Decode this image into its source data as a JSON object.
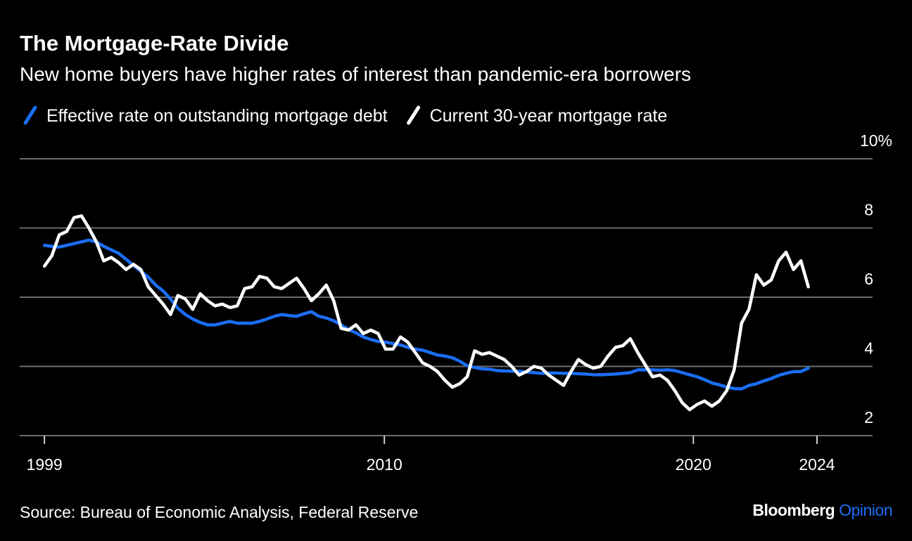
{
  "chart_data": {
    "type": "line",
    "title": "The Mortgage-Rate Divide",
    "subtitle": "New home buyers have higher rates of interest than pandemic-era borrowers",
    "source": "Source: Bureau of Economic Analysis, Federal Reserve",
    "brand": [
      "Bloomberg",
      "Opinion"
    ],
    "x": [
      1999,
      1999.24,
      1999.48,
      1999.72,
      1999.96,
      2000.2,
      2000.44,
      2000.68,
      2000.92,
      2001.16,
      2001.4,
      2001.64,
      2001.88,
      2002.12,
      2002.36,
      2002.6,
      2002.84,
      2003.08,
      2003.32,
      2003.56,
      2003.8,
      2004.04,
      2004.28,
      2004.52,
      2004.76,
      2005,
      2005.24,
      2005.48,
      2005.72,
      2005.96,
      2006.2,
      2006.44,
      2006.68,
      2006.92,
      2007.16,
      2007.4,
      2007.64,
      2007.88,
      2008.12,
      2008.36,
      2008.6,
      2008.84,
      2009.08,
      2009.32,
      2009.56,
      2009.8,
      2010.04,
      2010.28,
      2010.52,
      2010.76,
      2011,
      2011.24,
      2011.48,
      2011.72,
      2011.96,
      2012.2,
      2012.44,
      2012.68,
      2012.92,
      2013.16,
      2013.4,
      2013.64,
      2013.88,
      2014.12,
      2014.36,
      2014.6,
      2014.84,
      2015.08,
      2015.32,
      2015.56,
      2015.8,
      2016.04,
      2016.28,
      2016.52,
      2016.76,
      2017,
      2017.24,
      2017.48,
      2017.72,
      2017.96,
      2018.2,
      2018.44,
      2018.68,
      2018.92,
      2019.16,
      2019.4,
      2019.64,
      2019.88,
      2020.12,
      2020.36,
      2020.6,
      2020.84,
      2021.08,
      2021.32,
      2021.56,
      2021.8,
      2022.04,
      2022.28,
      2022.52,
      2022.76,
      2023,
      2023.24,
      2023.48,
      2023.72
    ],
    "series": [
      {
        "name": "Effective rate on outstanding mortgage debt",
        "color": "#1a6ef5",
        "values": [
          7.5,
          7.47,
          7.45,
          7.5,
          7.55,
          7.6,
          7.65,
          7.6,
          7.47,
          7.37,
          7.27,
          7.1,
          6.92,
          6.75,
          6.58,
          6.35,
          6.18,
          5.95,
          5.68,
          5.5,
          5.37,
          5.27,
          5.2,
          5.2,
          5.25,
          5.3,
          5.25,
          5.25,
          5.25,
          5.3,
          5.37,
          5.45,
          5.5,
          5.47,
          5.45,
          5.52,
          5.58,
          5.45,
          5.4,
          5.32,
          5.2,
          5.07,
          4.97,
          4.85,
          4.78,
          4.72,
          4.7,
          4.66,
          4.62,
          4.55,
          4.5,
          4.47,
          4.4,
          4.33,
          4.3,
          4.25,
          4.15,
          4.02,
          3.97,
          3.93,
          3.92,
          3.88,
          3.87,
          3.86,
          3.86,
          3.84,
          3.82,
          3.8,
          3.81,
          3.81,
          3.8,
          3.8,
          3.79,
          3.78,
          3.76,
          3.76,
          3.77,
          3.78,
          3.8,
          3.82,
          3.9,
          3.9,
          3.9,
          3.89,
          3.9,
          3.88,
          3.82,
          3.76,
          3.7,
          3.62,
          3.52,
          3.47,
          3.4,
          3.36,
          3.35,
          3.45,
          3.5,
          3.58,
          3.65,
          3.74,
          3.8,
          3.85,
          3.85,
          3.95
        ]
      },
      {
        "name": "Current 30-year mortgage rate",
        "color": "#ffffff",
        "values": [
          6.9,
          7.2,
          7.8,
          7.9,
          8.3,
          8.35,
          8.0,
          7.6,
          7.05,
          7.15,
          7.0,
          6.8,
          6.95,
          6.8,
          6.3,
          6.05,
          5.8,
          5.5,
          6.05,
          5.95,
          5.65,
          6.1,
          5.9,
          5.75,
          5.8,
          5.7,
          5.75,
          6.25,
          6.3,
          6.6,
          6.55,
          6.3,
          6.25,
          6.4,
          6.55,
          6.25,
          5.9,
          6.1,
          6.35,
          5.9,
          5.1,
          5.05,
          5.2,
          4.95,
          5.05,
          4.95,
          4.5,
          4.5,
          4.85,
          4.7,
          4.4,
          4.1,
          4.0,
          3.85,
          3.6,
          3.4,
          3.5,
          3.7,
          4.45,
          4.35,
          4.4,
          4.3,
          4.2,
          4.0,
          3.75,
          3.85,
          4.0,
          3.95,
          3.75,
          3.6,
          3.45,
          3.85,
          4.2,
          4.05,
          3.95,
          4.0,
          4.3,
          4.55,
          4.6,
          4.8,
          4.4,
          4.05,
          3.7,
          3.75,
          3.6,
          3.3,
          2.95,
          2.75,
          2.9,
          3.0,
          2.85,
          3.0,
          3.3,
          3.9,
          5.25,
          5.65,
          6.65,
          6.35,
          6.5,
          7.05,
          7.3,
          6.8,
          7.05,
          6.3
        ]
      }
    ],
    "xlim": [
      1998.2,
      2025.8
    ],
    "xticks": [
      1999,
      2010,
      2020,
      2024
    ],
    "ylim": [
      2,
      10
    ],
    "yticks": [
      2,
      4,
      6,
      8,
      {
        "value": 10,
        "label": "10%"
      }
    ],
    "grid": true
  }
}
